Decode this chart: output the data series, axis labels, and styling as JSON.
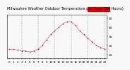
{
  "title": "Milwaukee Weather Outdoor Temperature per Hour (24 Hours)",
  "hours": [
    0,
    1,
    2,
    3,
    4,
    5,
    6,
    7,
    8,
    9,
    10,
    11,
    12,
    13,
    14,
    15,
    16,
    17,
    18,
    19,
    20,
    21,
    22,
    23
  ],
  "temps": [
    28,
    28,
    27.5,
    27,
    27,
    26.5,
    27,
    28,
    30,
    33,
    36,
    38,
    40,
    42,
    43,
    43,
    41,
    38,
    36,
    34,
    32,
    30,
    29,
    28
  ],
  "ylim": [
    23,
    47
  ],
  "yticks": [
    25,
    30,
    35,
    40,
    45
  ],
  "ytick_labels": [
    "25",
    "30",
    "35",
    "40",
    "45"
  ],
  "marker_color": "#cc0000",
  "line_color": "#cc0000",
  "grid_color": "#999999",
  "bg_color": "#f8f8f8",
  "border_color": "#444444",
  "title_fontsize": 3.8,
  "tick_fontsize": 3.2,
  "legend_bar_color": "#dd0000",
  "vgrid_hours": [
    3,
    7,
    11,
    15,
    19,
    23
  ],
  "marker_size": 1.0,
  "line_width": 0.3
}
